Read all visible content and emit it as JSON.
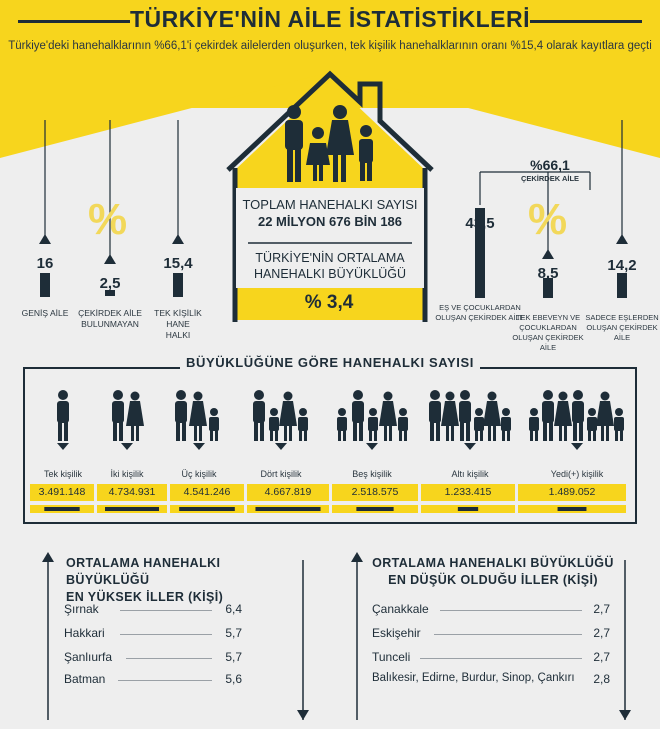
{
  "header": {
    "title": "TÜRKİYE'NİN AİLE İSTATİSTİKLERİ",
    "subtitle": "Türkiye'deki hanehalklarının %66,1'i çekirdek ailelerden oluşurken, tek kişilik hanehalklarının oranı %15,4 olarak kayıtlara geçti"
  },
  "house": {
    "total_label": "TOPLAM HANEHALKI SAYISI",
    "total_value": "22 MİLYON 676 BİN 186",
    "avg_label_1": "TÜRKİYE'NİN ORTALAMA",
    "avg_label_2": "HANEHALKI BÜYÜKLÜĞÜ",
    "avg_value": "% 3,4"
  },
  "left_stats": [
    {
      "value": "16",
      "label": "GENİŞ AİLE"
    },
    {
      "value": "2,5",
      "label": "ÇEKİRDEK AİLE BULUNMAYAN"
    },
    {
      "value": "15,4",
      "label": "TEK KİŞİLİK HANE HALKI"
    }
  ],
  "right_stats": {
    "core_value": "%66,1",
    "core_label": "ÇEKİRDEK AİLE",
    "items": [
      {
        "value": "43,5",
        "label": "EŞ VE ÇOCUKLARDAN OLUŞAN ÇEKİRDEK AİLE"
      },
      {
        "value": "8,5",
        "label": "TEK EBEVEYN VE ÇOCUKLARDAN OLUŞAN ÇEKİRDEK AİLE"
      },
      {
        "value": "14,2",
        "label": "SADECE EŞLERDEN OLUŞAN ÇEKİRDEK AİLE"
      }
    ]
  },
  "ghost_percent": "%",
  "by_size": {
    "title": "BÜYÜKLÜĞÜNE GÖRE HANEHALKI SAYISI",
    "categories": [
      {
        "label": "Tek kişilik",
        "value": "3.491.148",
        "share": 0.737
      },
      {
        "label": "İki kişilik",
        "value": "4.734.931",
        "share": 1.0
      },
      {
        "label": "Üç kişilik",
        "value": "4.541.246",
        "share": 0.959
      },
      {
        "label": "Dört kişilik",
        "value": "4.667.819",
        "share": 0.986
      },
      {
        "label": "Beş kişilik",
        "value": "2.518.575",
        "share": 0.532
      },
      {
        "label": "Altı kişilik",
        "value": "1.233.415",
        "share": 0.26
      },
      {
        "label": "Yedi(+) kişilik",
        "value": "1.489.052",
        "share": 0.314
      }
    ]
  },
  "highest": {
    "title_1": "ORTALAMA HANEHALKI BÜYÜKLÜĞÜ",
    "title_2": "EN YÜKSEK İLLER (KİŞİ)",
    "rows": [
      {
        "city": "Şırnak",
        "value": "6,4"
      },
      {
        "city": "Hakkari",
        "value": "5,7"
      },
      {
        "city": "Şanlıurfa",
        "value": "5,7"
      },
      {
        "city": "Batman",
        "value": "5,6"
      }
    ]
  },
  "lowest": {
    "title_1": "ORTALAMA HANEHALKI BÜYÜKLÜĞÜ",
    "title_2": "EN DÜŞÜK OLDUĞU İLLER (KİŞİ)",
    "rows": [
      {
        "city": "Çanakkale",
        "value": "2,7"
      },
      {
        "city": "Eskişehir",
        "value": "2,7"
      },
      {
        "city": "Tunceli",
        "value": "2,7"
      },
      {
        "city": "Balıkesir, Edirne, Burdur, Sinop, Çankırı",
        "value": "2,8"
      }
    ]
  },
  "colors": {
    "yellow": "#f7d51d",
    "navy": "#1e2d38",
    "background": "#eeeeee"
  }
}
